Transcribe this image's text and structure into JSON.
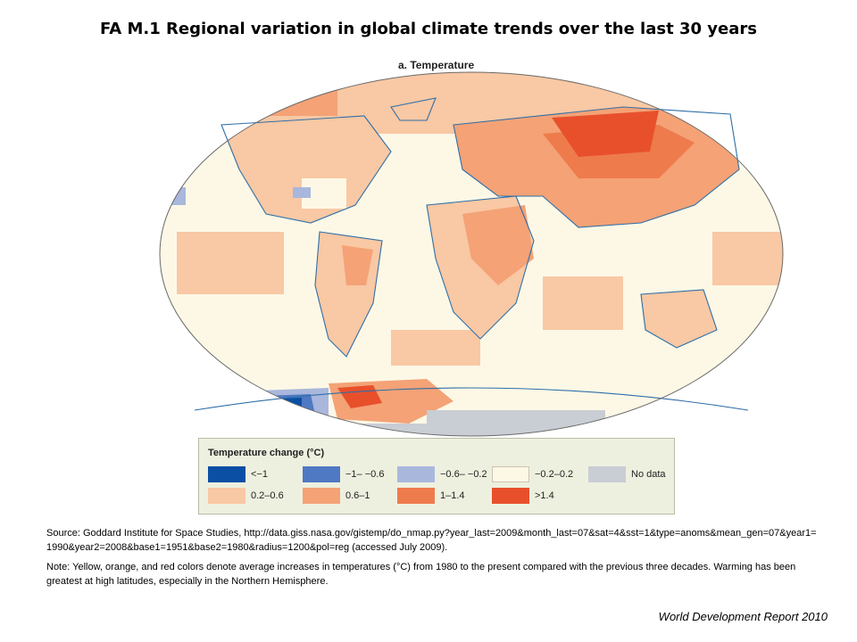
{
  "title": "FA M.1 Regional variation in global climate trends over the last 30 years",
  "panel_title": "a. Temperature",
  "legend": {
    "title": "Temperature change (°C)",
    "items": [
      {
        "label": "<−1",
        "color": "#0a4fa3"
      },
      {
        "label": "−1– −0.6",
        "color": "#4f79c2"
      },
      {
        "label": "−0.6– −0.2",
        "color": "#a9b7dc"
      },
      {
        "label": "−0.2–0.2",
        "color": "#fdf8e6"
      },
      {
        "label": "No data",
        "color": "#c9cdd4"
      },
      {
        "label": "0.2–0.6",
        "color": "#f9c8a4"
      },
      {
        "label": "0.6–1",
        "color": "#f4a276"
      },
      {
        "label": "1–1.4",
        "color": "#ee7b4c"
      },
      {
        "label": ">1.4",
        "color": "#e8502c"
      }
    ]
  },
  "map_colors": {
    "ocean_neutral": "#fdf8e6",
    "warm_light": "#f9c8a4",
    "warm_mid": "#f4a276",
    "warm_strong": "#ee7b4c",
    "warm_max": "#e8502c",
    "cool_light": "#a9b7dc",
    "cool_mid": "#4f79c2",
    "cool_strong": "#0a4fa3",
    "no_data": "#c9cdd4",
    "coastline": "#2f6fa8"
  },
  "source_text": "Source: Goddard Institute for Space Studies, http://data.giss.nasa.gov/gistemp/do_nmap.py?year_last=2009&month_last=07&sat=4&sst=1&type=anoms&mean_gen=07&year1=1990&year2=2008&base1=1951&base2=1980&radius=1200&pol=reg (accessed July 2009).",
  "note_text": "Note: Yellow, orange, and red colors denote average increases in temperatures (°C) from 1980 to the present compared with the previous three decades. Warming has been greatest at high latitudes, especially in the Northern Hemisphere.",
  "credit": "World Development Report 2010"
}
